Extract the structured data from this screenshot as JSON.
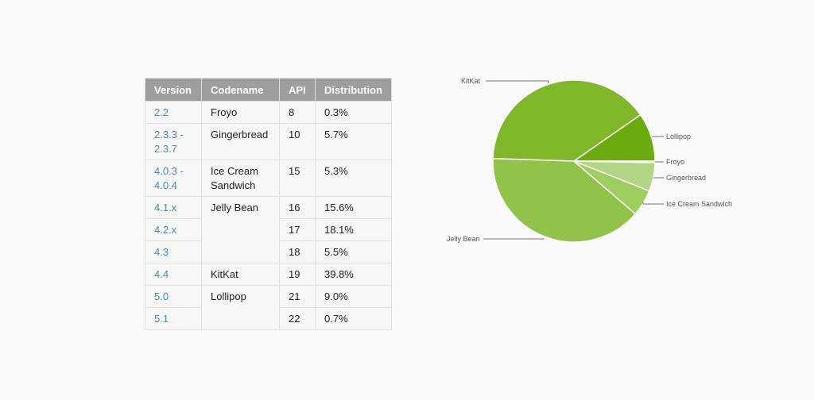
{
  "table": {
    "headers": [
      "Version",
      "Codename",
      "API",
      "Distribution"
    ],
    "rows": [
      {
        "version": "2.2",
        "codename": "Froyo",
        "api": "8",
        "dist": "0.3%"
      },
      {
        "version": "2.3.3 - 2.3.7",
        "codename": "Gingerbread",
        "api": "10",
        "dist": "5.7%"
      },
      {
        "version": "4.0.3 - 4.0.4",
        "codename": "Ice Cream Sandwich",
        "api": "15",
        "dist": "5.3%"
      },
      {
        "version": "4.1.x",
        "codename": "Jelly Bean",
        "api": "16",
        "dist": "15.6%"
      },
      {
        "version": "4.2.x",
        "codename": "",
        "api": "17",
        "dist": "18.1%"
      },
      {
        "version": "4.3",
        "codename": "",
        "api": "18",
        "dist": "5.5%"
      },
      {
        "version": "4.4",
        "codename": "KitKat",
        "api": "19",
        "dist": "39.8%"
      },
      {
        "version": "5.0",
        "codename": "Lollipop",
        "api": "21",
        "dist": "9.0%"
      },
      {
        "version": "5.1",
        "codename": "",
        "api": "22",
        "dist": "0.7%"
      }
    ]
  },
  "chart_data": {
    "type": "pie",
    "title": "",
    "categories": [
      "Lollipop",
      "KitKat",
      "Jelly Bean",
      "Ice Cream Sandwich",
      "Gingerbread",
      "Froyo"
    ],
    "values": [
      9.7,
      39.8,
      39.2,
      5.3,
      5.7,
      0.3
    ],
    "colors": [
      "#6cab0f",
      "#80b62a",
      "#93c24a",
      "#9fcd5f",
      "#b3d685",
      "#c6e0a4"
    ]
  }
}
